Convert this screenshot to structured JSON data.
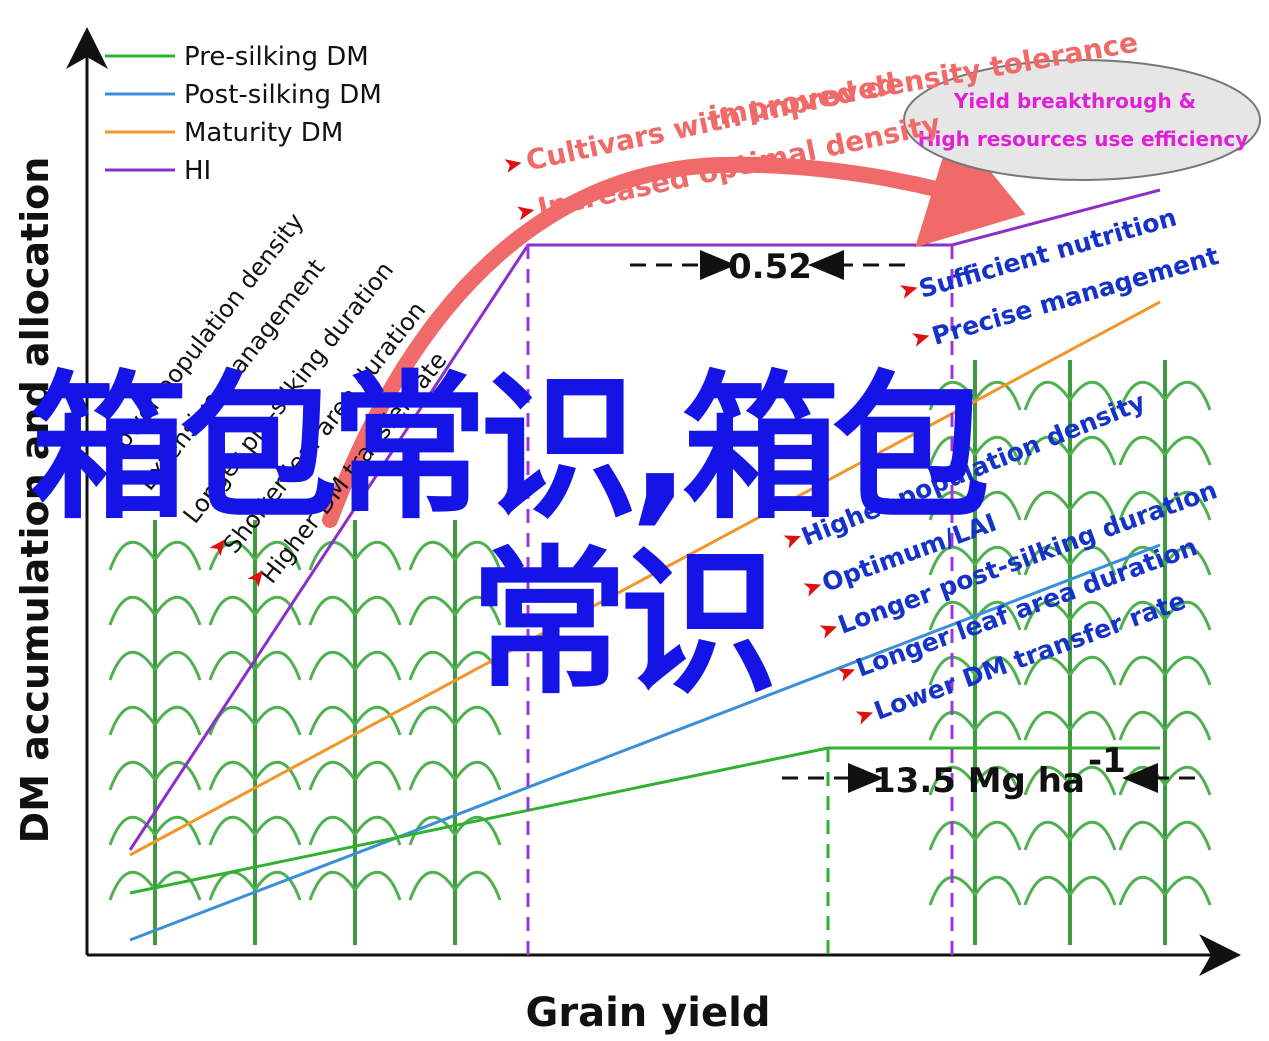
{
  "axes": {
    "x_title": "Grain yield",
    "y_title": "DM accumulation and allocation"
  },
  "legend": [
    {
      "label": "Pre-silking DM",
      "color": "#2fb22f"
    },
    {
      "label": "Post-silking DM",
      "color": "#3a8fd8"
    },
    {
      "label": "Maturity DM",
      "color": "#f0962a"
    },
    {
      "label": "HI",
      "color": "#8b2fc9"
    }
  ],
  "left_factors": [
    "Lower population density",
    "Extensive management",
    "Longer pre-silking duration",
    "Shorter leaf area duration",
    "Higher DM transfer rate"
  ],
  "right_factors_top": [
    "Sufficient nutrition",
    "Precise management"
  ],
  "right_factors_bottom": [
    "Higher population density",
    "Optimum/LAI",
    "Longer  post-silking duration",
    "Longer leaf area duration",
    "Lower DM transfer rate"
  ],
  "top_annotations": {
    "arc_label": "Cultivars with improved density tolerance",
    "line1": "Cultivars with improved",
    "line2": "Increased optimal density"
  },
  "ellipse": {
    "line1": "Yield breakthrough &",
    "line2": "High resources use efficiency"
  },
  "values": {
    "hi_value": "0.52",
    "yield_value": "13.5 Mg ha",
    "yield_exp": "-1"
  },
  "overlay_title": {
    "line1": "箱包常识,箱包",
    "line2": "常识"
  },
  "colors": {
    "arrow": "#f06a6a",
    "right_text": "#1533c8",
    "overlay": "#1414e6"
  }
}
